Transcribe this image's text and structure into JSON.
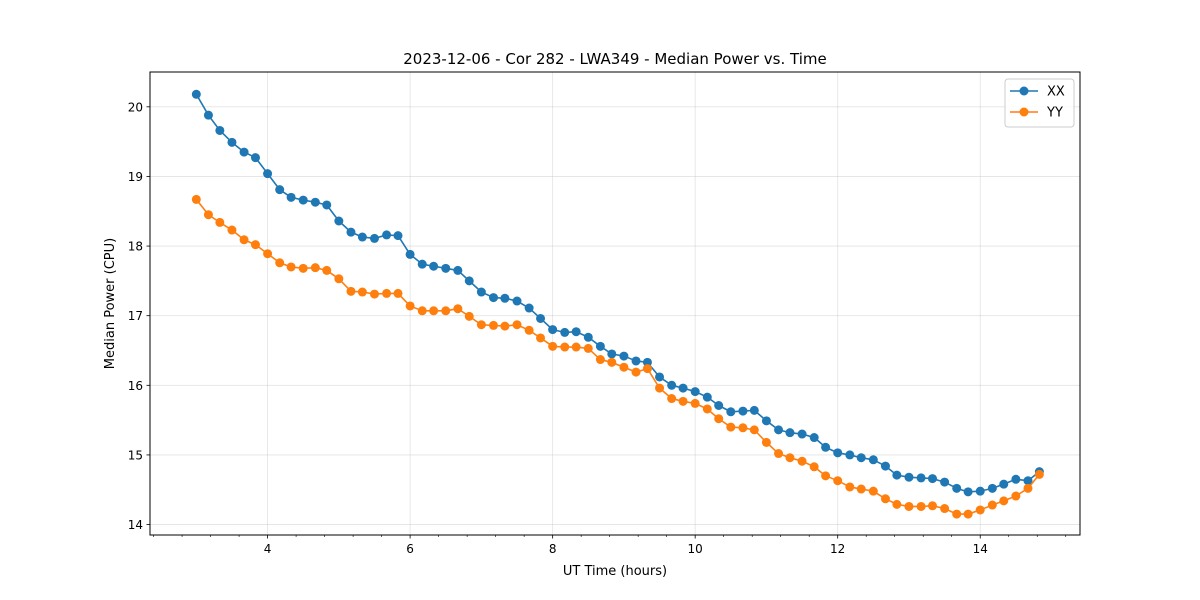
{
  "chart_data": {
    "type": "line",
    "title": "2023-12-06 - Cor 282 - LWA349 - Median Power vs. Time",
    "xlabel": "UT Time (hours)",
    "ylabel": "Median Power (CPU)",
    "xlim": [
      2.35,
      15.4
    ],
    "ylim": [
      13.85,
      20.5
    ],
    "xticks": [
      4,
      6,
      8,
      10,
      12,
      14
    ],
    "xtick_labels": [
      "4",
      "6",
      "8",
      "10",
      "12",
      "14"
    ],
    "xminor_step": 0.4,
    "yticks": [
      14,
      15,
      16,
      17,
      18,
      19,
      20
    ],
    "ytick_labels": [
      "14",
      "15",
      "16",
      "17",
      "18",
      "19",
      "20"
    ],
    "grid": true,
    "legend_position": "top-right",
    "x": [
      3.0,
      3.17,
      3.33,
      3.5,
      3.67,
      3.83,
      4.0,
      4.17,
      4.33,
      4.5,
      4.67,
      4.83,
      5.0,
      5.17,
      5.33,
      5.5,
      5.67,
      5.83,
      6.0,
      6.17,
      6.33,
      6.5,
      6.67,
      6.83,
      7.0,
      7.17,
      7.33,
      7.5,
      7.67,
      7.83,
      8.0,
      8.17,
      8.33,
      8.5,
      8.67,
      8.83,
      9.0,
      9.17,
      9.33,
      9.5,
      9.67,
      9.83,
      10.0,
      10.17,
      10.33,
      10.5,
      10.67,
      10.83,
      11.0,
      11.17,
      11.33,
      11.5,
      11.67,
      11.83,
      12.0,
      12.17,
      12.33,
      12.5,
      12.67,
      12.83,
      13.0,
      13.17,
      13.33,
      13.5,
      13.67,
      13.83,
      14.0,
      14.17,
      14.33,
      14.5,
      14.67,
      14.83
    ],
    "series": [
      {
        "name": "XX",
        "color": "#1f77b4",
        "values": [
          20.18,
          19.88,
          19.66,
          19.49,
          19.35,
          19.27,
          19.04,
          18.81,
          18.7,
          18.66,
          18.63,
          18.59,
          18.36,
          18.2,
          18.13,
          18.11,
          18.16,
          18.15,
          17.88,
          17.74,
          17.71,
          17.68,
          17.65,
          17.5,
          17.34,
          17.26,
          17.25,
          17.21,
          17.11,
          16.96,
          16.8,
          16.76,
          16.77,
          16.69,
          16.56,
          16.45,
          16.42,
          16.35,
          16.33,
          16.12,
          16.0,
          15.96,
          15.91,
          15.83,
          15.71,
          15.62,
          15.63,
          15.64,
          15.49,
          15.36,
          15.32,
          15.3,
          15.25,
          15.11,
          15.03,
          15.0,
          14.96,
          14.93,
          14.84,
          14.71,
          14.68,
          14.67,
          14.66,
          14.61,
          14.52,
          14.47,
          14.48,
          14.52,
          14.58,
          14.65,
          14.63,
          14.76
        ]
      },
      {
        "name": "YY",
        "color": "#ff7f0e",
        "values": [
          18.67,
          18.45,
          18.34,
          18.23,
          18.09,
          18.02,
          17.89,
          17.76,
          17.7,
          17.68,
          17.69,
          17.65,
          17.53,
          17.35,
          17.34,
          17.31,
          17.32,
          17.32,
          17.14,
          17.07,
          17.07,
          17.07,
          17.1,
          16.99,
          16.87,
          16.86,
          16.85,
          16.87,
          16.79,
          16.68,
          16.56,
          16.55,
          16.55,
          16.53,
          16.37,
          16.33,
          16.26,
          16.19,
          16.24,
          15.96,
          15.81,
          15.77,
          15.74,
          15.66,
          15.52,
          15.4,
          15.39,
          15.36,
          15.18,
          15.02,
          14.96,
          14.91,
          14.83,
          14.7,
          14.63,
          14.54,
          14.51,
          14.48,
          14.37,
          14.29,
          14.26,
          14.26,
          14.27,
          14.23,
          14.15,
          14.15,
          14.21,
          14.28,
          14.34,
          14.41,
          14.52,
          14.72
        ]
      }
    ]
  }
}
